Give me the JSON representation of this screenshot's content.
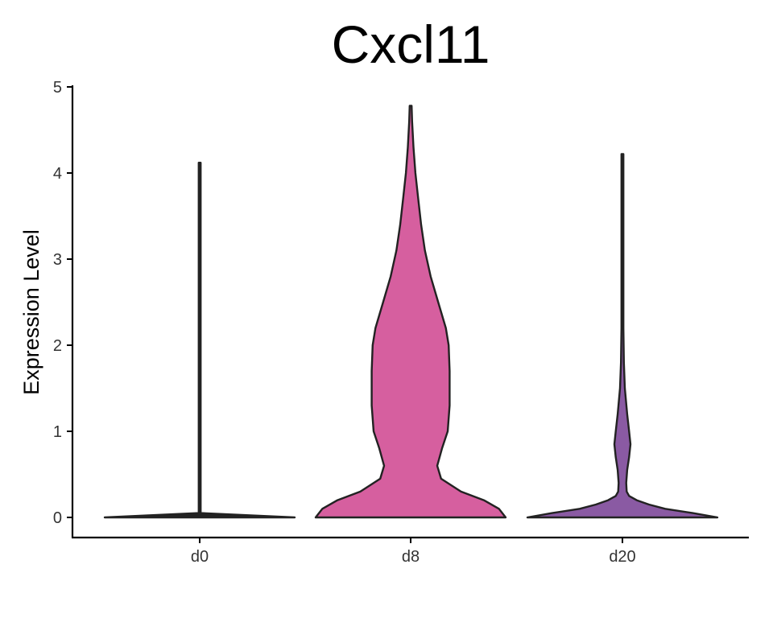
{
  "chart_data": {
    "type": "violin",
    "title": "Cxcl11",
    "xlabel": "",
    "ylabel": "Expression Level",
    "categories": [
      "d0",
      "d8",
      "d20"
    ],
    "ylim": [
      0,
      5
    ],
    "yticks": [
      "0",
      "1",
      "2",
      "3",
      "4",
      "5"
    ],
    "grid": false,
    "legend": "none",
    "series": [
      {
        "category": "d0",
        "color": "#222222",
        "max": 4.12,
        "density": [
          [
            0.0,
            1.0
          ],
          [
            0.05,
            0.005
          ],
          [
            4.12,
            0.005
          ]
        ]
      },
      {
        "category": "d8",
        "color": "#d65f9f",
        "max": 4.78,
        "density": [
          [
            0.0,
            1.0
          ],
          [
            0.1,
            0.93
          ],
          [
            0.2,
            0.77
          ],
          [
            0.3,
            0.53
          ],
          [
            0.45,
            0.32
          ],
          [
            0.6,
            0.28
          ],
          [
            0.8,
            0.33
          ],
          [
            1.0,
            0.39
          ],
          [
            1.3,
            0.41
          ],
          [
            1.7,
            0.41
          ],
          [
            2.0,
            0.4
          ],
          [
            2.2,
            0.37
          ],
          [
            2.5,
            0.29
          ],
          [
            2.8,
            0.21
          ],
          [
            3.1,
            0.15
          ],
          [
            3.4,
            0.11
          ],
          [
            3.7,
            0.08
          ],
          [
            4.0,
            0.05
          ],
          [
            4.3,
            0.03
          ],
          [
            4.6,
            0.015
          ],
          [
            4.78,
            0.0
          ]
        ]
      },
      {
        "category": "d20",
        "color": "#8a5aa3",
        "max": 4.22,
        "density": [
          [
            0.0,
            1.0
          ],
          [
            0.05,
            0.74
          ],
          [
            0.1,
            0.45
          ],
          [
            0.15,
            0.28
          ],
          [
            0.2,
            0.15
          ],
          [
            0.25,
            0.07
          ],
          [
            0.3,
            0.045
          ],
          [
            0.4,
            0.04
          ],
          [
            0.55,
            0.05
          ],
          [
            0.7,
            0.07
          ],
          [
            0.85,
            0.085
          ],
          [
            1.0,
            0.07
          ],
          [
            1.2,
            0.05
          ],
          [
            1.5,
            0.025
          ],
          [
            1.8,
            0.015
          ],
          [
            2.2,
            0.008
          ],
          [
            2.6,
            0.006
          ],
          [
            3.2,
            0.004
          ],
          [
            3.8,
            0.003
          ],
          [
            4.22,
            0.0
          ]
        ]
      }
    ]
  }
}
